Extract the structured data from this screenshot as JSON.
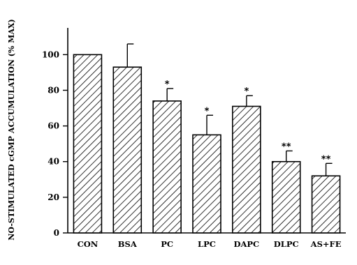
{
  "chart_data": {
    "type": "bar",
    "title": "",
    "xlabel": "",
    "ylabel": "NO-STIMULATED cGMP ACCUMULATION (% MAX)",
    "ylim": [
      0,
      115
    ],
    "yticks": [
      0,
      20,
      40,
      60,
      80,
      100
    ],
    "grid": false,
    "categories": [
      "CON",
      "BSA",
      "PC",
      "LPC",
      "DAPC",
      "DLPC",
      "AS+FE"
    ],
    "values": [
      100,
      93,
      74,
      55,
      71,
      40,
      32
    ],
    "errors": [
      0,
      13,
      7,
      11,
      6,
      6,
      7
    ],
    "significance": [
      "",
      "",
      "*",
      "*",
      "*",
      "**",
      "**"
    ],
    "bar_pattern": "diagonal-hatch",
    "colors": {
      "bar_stroke": "#000000",
      "hatch": "#000000",
      "background": "#ffffff"
    }
  }
}
